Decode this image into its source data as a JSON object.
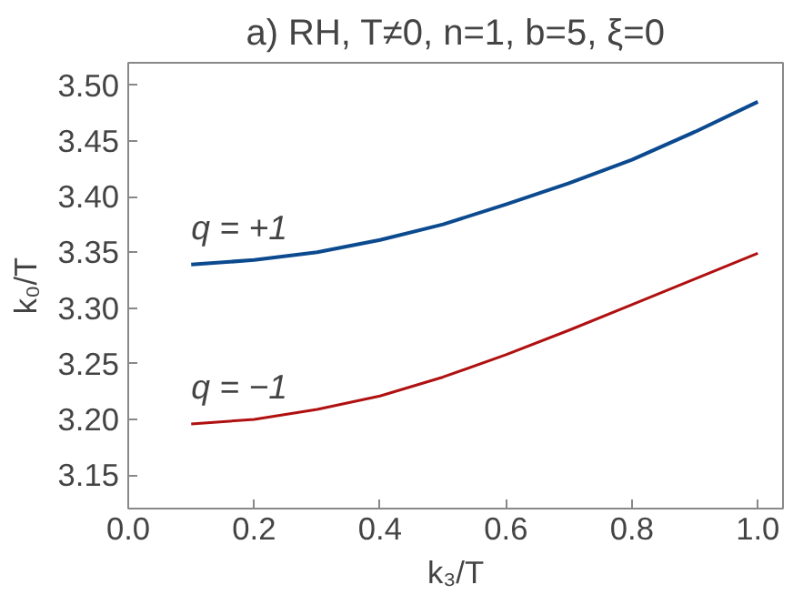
{
  "chart_data": {
    "type": "line",
    "title": "a) RH, T≠0, n=1, b=5, ξ=0",
    "xlabel": "k₃/T",
    "ylabel": "k₀/T",
    "x": [
      0.1,
      0.2,
      0.3,
      0.4,
      0.5,
      0.6,
      0.7,
      0.8,
      0.9,
      1.0
    ],
    "series": [
      {
        "name": "q = +1",
        "color": "#0b4a8f",
        "values": [
          3.339,
          3.343,
          3.35,
          3.361,
          3.375,
          3.393,
          3.412,
          3.433,
          3.458,
          3.485
        ]
      },
      {
        "name": "q = −1",
        "color": "#b01010",
        "values": [
          3.196,
          3.2,
          3.209,
          3.221,
          3.238,
          3.258,
          3.28,
          3.303,
          3.326,
          3.349
        ]
      }
    ],
    "xlim": [
      0.0,
      1.04
    ],
    "ylim": [
      3.12,
      3.52
    ],
    "xticks": [
      {
        "value": 0.0,
        "label": "0.0"
      },
      0.2,
      0.4,
      0.6,
      0.8,
      {
        "value": 1.0,
        "label": "1.0"
      }
    ],
    "yticks": [
      3.15,
      {
        "value": 3.2,
        "label": "3.20"
      },
      3.25,
      {
        "value": 3.3,
        "label": "3.30"
      },
      3.35,
      {
        "value": 3.4,
        "label": "3.40"
      },
      3.45,
      {
        "value": 3.5,
        "label": "3.50"
      }
    ],
    "grid": false,
    "marker": "none",
    "line_style": "solid"
  }
}
